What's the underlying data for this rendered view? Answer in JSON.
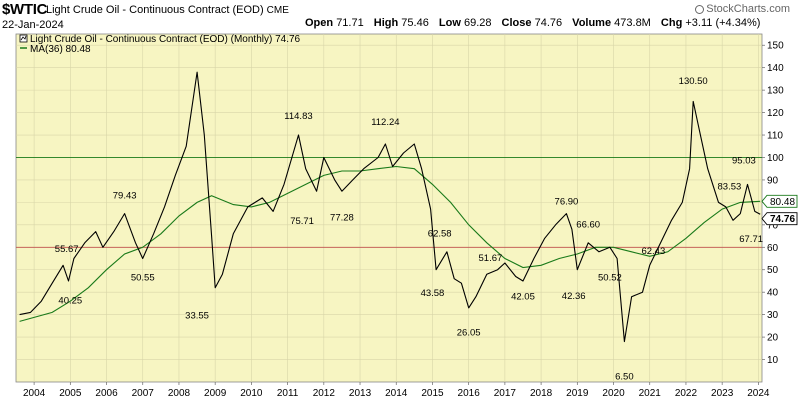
{
  "header": {
    "symbol": "$WTIC",
    "description": "Light Crude Oil - Continuous Contract (EOD)",
    "exchange": "CME",
    "date": "22-Jan-2024",
    "brand": "StockCharts.com",
    "open_label": "Open",
    "open": "71.71",
    "high_label": "High",
    "high": "75.46",
    "low_label": "Low",
    "low": "69.28",
    "close_label": "Close",
    "close": "74.76",
    "volume_label": "Volume",
    "volume": "473.8M",
    "chg_label": "Chg",
    "chg": "+3.11 (+4.34%)"
  },
  "legend": {
    "price": "Light Crude Oil - Continuous Contract (EOD) (Monthly) 74.76",
    "ma": "MA(36) 80.48"
  },
  "colors": {
    "plot_bg": "#f7f5c2",
    "price": "#000000",
    "ma": "#1a7a1a",
    "hline_top": "#1a7a1a",
    "hline_bottom": "#c0504d",
    "grid": "#d8d5a8"
  },
  "chart_data": {
    "type": "line",
    "x_label_years": [
      "2004",
      "2005",
      "2006",
      "2007",
      "2008",
      "2009",
      "2010",
      "2011",
      "2012",
      "2013",
      "2014",
      "2015",
      "2016",
      "2017",
      "2018",
      "2019",
      "2020",
      "2021",
      "2022",
      "2023",
      "2024"
    ],
    "xlim": [
      2003.5,
      2024.1
    ],
    "ylim": [
      0,
      155
    ],
    "y_ticks": [
      10,
      20,
      30,
      40,
      50,
      60,
      70,
      80,
      90,
      100,
      110,
      120,
      130,
      140,
      150
    ],
    "horizontal_lines": [
      100,
      60
    ],
    "grid": true,
    "legend_position": "top-left",
    "price_labels": [
      {
        "x": 2004.9,
        "y": 55.67,
        "text": "55.67",
        "pos": "above"
      },
      {
        "x": 2005.0,
        "y": 40.25,
        "text": "40.25",
        "pos": "below"
      },
      {
        "x": 2006.5,
        "y": 79.43,
        "text": "79.43",
        "pos": "above"
      },
      {
        "x": 2007.0,
        "y": 50.55,
        "text": "50.55",
        "pos": "below"
      },
      {
        "x": 2008.5,
        "y": 33.55,
        "text": "33.55",
        "pos": "below"
      },
      {
        "x": 2011.3,
        "y": 114.83,
        "text": "114.83",
        "pos": "above"
      },
      {
        "x": 2011.4,
        "y": 75.71,
        "text": "75.71",
        "pos": "below"
      },
      {
        "x": 2012.5,
        "y": 77.28,
        "text": "77.28",
        "pos": "below"
      },
      {
        "x": 2013.7,
        "y": 112.24,
        "text": "112.24",
        "pos": "above"
      },
      {
        "x": 2015.2,
        "y": 62.58,
        "text": "62.58",
        "pos": "above"
      },
      {
        "x": 2015.0,
        "y": 43.58,
        "text": "43.58",
        "pos": "below"
      },
      {
        "x": 2016.0,
        "y": 26.05,
        "text": "26.05",
        "pos": "below"
      },
      {
        "x": 2016.6,
        "y": 51.67,
        "text": "51.67",
        "pos": "above"
      },
      {
        "x": 2017.5,
        "y": 42.05,
        "text": "42.05",
        "pos": "below"
      },
      {
        "x": 2018.7,
        "y": 76.9,
        "text": "76.90",
        "pos": "above"
      },
      {
        "x": 2018.9,
        "y": 42.36,
        "text": "42.36",
        "pos": "below"
      },
      {
        "x": 2019.3,
        "y": 66.6,
        "text": "66.60",
        "pos": "above"
      },
      {
        "x": 2019.9,
        "y": 50.52,
        "text": "50.52",
        "pos": "below"
      },
      {
        "x": 2020.3,
        "y": 6.5,
        "text": "6.50",
        "pos": "below"
      },
      {
        "x": 2021.1,
        "y": 62.43,
        "text": "62.43",
        "pos": "below"
      },
      {
        "x": 2022.2,
        "y": 130.5,
        "text": "130.50",
        "pos": "above"
      },
      {
        "x": 2023.6,
        "y": 95.03,
        "text": "95.03",
        "pos": "above"
      },
      {
        "x": 2023.2,
        "y": 83.53,
        "text": "83.53",
        "pos": "above"
      },
      {
        "x": 2023.8,
        "y": 67.71,
        "text": "67.71",
        "pos": "below"
      }
    ],
    "series": [
      {
        "name": "Light Crude Oil - Continuous Contract (EOD) (Monthly) 74.76",
        "x": [
          2003.6,
          2003.9,
          2004.2,
          2004.5,
          2004.8,
          2004.95,
          2005.1,
          2005.4,
          2005.7,
          2005.9,
          2006.2,
          2006.5,
          2006.8,
          2007.0,
          2007.3,
          2007.6,
          2007.9,
          2008.2,
          2008.5,
          2008.7,
          2008.9,
          2009.0,
          2009.2,
          2009.5,
          2009.9,
          2010.3,
          2010.6,
          2010.9,
          2011.3,
          2011.5,
          2011.8,
          2012.0,
          2012.3,
          2012.5,
          2012.8,
          2013.1,
          2013.5,
          2013.7,
          2013.9,
          2014.2,
          2014.5,
          2014.7,
          2014.95,
          2015.1,
          2015.4,
          2015.6,
          2015.8,
          2016.0,
          2016.2,
          2016.5,
          2016.8,
          2017.0,
          2017.3,
          2017.5,
          2017.8,
          2018.1,
          2018.4,
          2018.7,
          2018.85,
          2019.0,
          2019.3,
          2019.6,
          2019.9,
          2020.1,
          2020.3,
          2020.5,
          2020.8,
          2021.0,
          2021.3,
          2021.6,
          2021.9,
          2022.1,
          2022.2,
          2022.4,
          2022.6,
          2022.9,
          2023.1,
          2023.3,
          2023.5,
          2023.7,
          2023.9,
          2024.05
        ],
        "values": [
          30,
          31,
          36,
          44,
          52,
          45,
          55,
          62,
          67,
          60,
          67,
          75,
          62,
          55,
          66,
          78,
          92,
          105,
          138,
          110,
          65,
          42,
          48,
          66,
          78,
          82,
          76,
          88,
          110,
          95,
          85,
          100,
          90,
          85,
          90,
          95,
          100,
          106,
          96,
          102,
          106,
          95,
          77,
          50,
          58,
          46,
          44,
          33,
          38,
          48,
          50,
          53,
          47,
          45,
          55,
          64,
          70,
          75,
          68,
          50,
          62,
          58,
          60,
          55,
          18,
          38,
          40,
          52,
          62,
          72,
          80,
          95,
          125,
          110,
          95,
          80,
          78,
          72,
          75,
          88,
          76,
          74.76
        ]
      },
      {
        "name": "MA(36) 80.48",
        "x": [
          2003.6,
          2004.5,
          2005.0,
          2005.5,
          2006.0,
          2006.5,
          2007.0,
          2007.5,
          2008.0,
          2008.5,
          2008.9,
          2009.5,
          2010.0,
          2010.5,
          2011.0,
          2011.5,
          2012.0,
          2012.5,
          2013.0,
          2013.5,
          2014.0,
          2014.5,
          2015.0,
          2015.5,
          2016.0,
          2016.5,
          2017.0,
          2017.5,
          2018.0,
          2018.5,
          2019.0,
          2019.5,
          2020.0,
          2020.5,
          2021.0,
          2021.5,
          2022.0,
          2022.5,
          2023.0,
          2023.5,
          2024.05
        ],
        "values": [
          27,
          31,
          36,
          42,
          50,
          57,
          60,
          66,
          74,
          80,
          83,
          79,
          78,
          80,
          84,
          88,
          92,
          94,
          94,
          95,
          96,
          95,
          88,
          80,
          70,
          62,
          55,
          51,
          52,
          55,
          57,
          60,
          60,
          58,
          56,
          58,
          64,
          71,
          77,
          80,
          80.48
        ]
      }
    ]
  }
}
